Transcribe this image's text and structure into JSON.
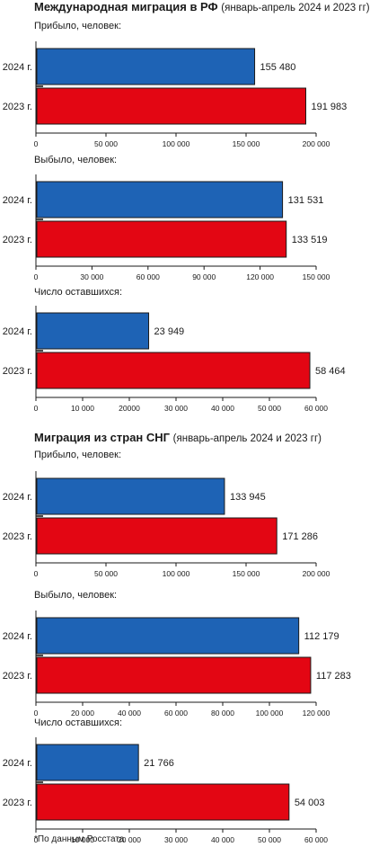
{
  "sections": [
    {
      "title": "Международная миграция в РФ",
      "subtitle": "(январь-апрель 2024 и 2023 гг)"
    },
    {
      "title": "Миграция из стран СНГ",
      "subtitle": "(январь-апрель 2024 и 2023 гг)"
    }
  ],
  "footnote": "*По данным Росстата",
  "colors": {
    "y2024": "#1e63b5",
    "y2023": "#e30613"
  },
  "chart_data": [
    {
      "type": "bar",
      "orientation": "horizontal",
      "title": "Прибыло, человек:",
      "categories": [
        "2024 г.",
        "2023 г."
      ],
      "values": [
        155480,
        191983
      ],
      "value_labels": [
        "155 480",
        "191 983"
      ],
      "xlim": [
        0,
        200000
      ],
      "ticks": [
        0,
        50000,
        100000,
        150000,
        200000
      ],
      "tick_labels": [
        "0",
        "50 000",
        "100 000",
        "150 000",
        "200 000"
      ]
    },
    {
      "type": "bar",
      "orientation": "horizontal",
      "title": "Выбыло, человек:",
      "categories": [
        "2024 г.",
        "2023 г."
      ],
      "values": [
        131531,
        133519
      ],
      "value_labels": [
        "131 531",
        "133 519"
      ],
      "xlim": [
        0,
        150000
      ],
      "ticks": [
        0,
        30000,
        60000,
        90000,
        120000,
        150000
      ],
      "tick_labels": [
        "0",
        "30 000",
        "60 000",
        "90 000",
        "120 000",
        "150 000"
      ]
    },
    {
      "type": "bar",
      "orientation": "horizontal",
      "title": "Число оставшихся:",
      "categories": [
        "2024 г.",
        "2023 г."
      ],
      "values": [
        23949,
        58464
      ],
      "value_labels": [
        "23 949",
        "58 464"
      ],
      "xlim": [
        0,
        60000
      ],
      "ticks": [
        0,
        10000,
        20000,
        30000,
        40000,
        50000,
        60000
      ],
      "tick_labels": [
        "0",
        "10 000",
        "20000",
        "30 000",
        "40 000",
        "50 000",
        "60 000"
      ]
    },
    {
      "type": "bar",
      "orientation": "horizontal",
      "title": "Прибыло, человек:",
      "categories": [
        "2024 г.",
        "2023 г."
      ],
      "values": [
        133945,
        171286
      ],
      "value_labels": [
        "133 945",
        "171 286"
      ],
      "xlim": [
        0,
        200000
      ],
      "ticks": [
        0,
        50000,
        100000,
        150000,
        200000
      ],
      "tick_labels": [
        "0",
        "50 000",
        "100 000",
        "150 000",
        "200 000"
      ]
    },
    {
      "type": "bar",
      "orientation": "horizontal",
      "title": "Выбыло, человек:",
      "categories": [
        "2024 г.",
        "2023 г."
      ],
      "values": [
        112179,
        117283
      ],
      "value_labels": [
        "112 179",
        "117 283"
      ],
      "xlim": [
        0,
        120000
      ],
      "ticks": [
        0,
        20000,
        40000,
        60000,
        80000,
        100000,
        120000
      ],
      "tick_labels": [
        "0",
        "20 000",
        "40 000",
        "60 000",
        "80 000",
        "100 000",
        "120 000"
      ]
    },
    {
      "type": "bar",
      "orientation": "horizontal",
      "title": "Число оставшихся:",
      "categories": [
        "2024 г.",
        "2023 г."
      ],
      "values": [
        21766,
        54003
      ],
      "value_labels": [
        "21 766",
        "54 003"
      ],
      "xlim": [
        0,
        60000
      ],
      "ticks": [
        0,
        10000,
        20000,
        30000,
        40000,
        50000,
        60000
      ],
      "tick_labels": [
        "0",
        "10 000",
        "20 000",
        "30 000",
        "40 000",
        "50 000",
        "60 000"
      ]
    }
  ]
}
